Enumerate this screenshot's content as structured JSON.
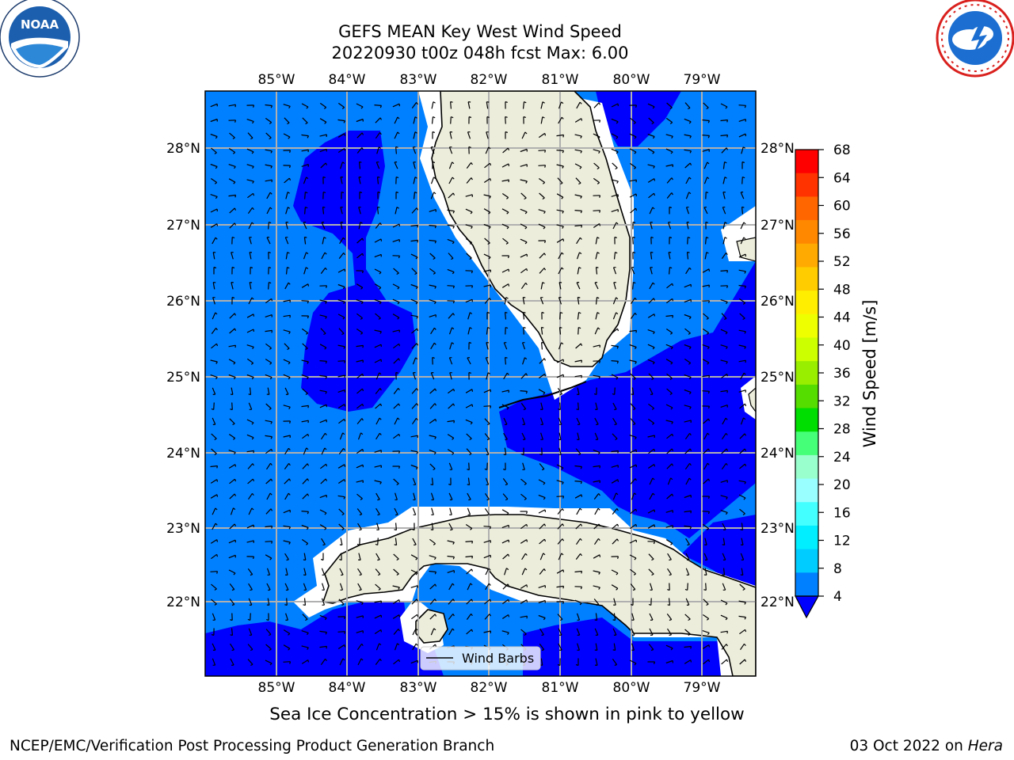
{
  "title": {
    "line1": "GEFS MEAN Key West Wind Speed",
    "line2": "20220930 t00z 048h fcst   Max: 6.00"
  },
  "logos": {
    "left": {
      "icon": "noaa-logo",
      "text": "NOAA"
    },
    "right": {
      "icon": "nws-logo"
    }
  },
  "map": {
    "lon_labels": [
      "85°W",
      "84°W",
      "83°W",
      "82°W",
      "81°W",
      "80°W",
      "79°W"
    ],
    "lat_labels": [
      "28°N",
      "27°N",
      "26°N",
      "25°N",
      "24°N",
      "23°N",
      "22°N"
    ],
    "legend_label": "Wind Barbs",
    "colors": {
      "band_4_8": "#0080ff",
      "band_below_4": "#0000ff",
      "land": "#ededdc",
      "gridline": "#b0b0b0"
    }
  },
  "colorbar": {
    "label": "Wind Speed [m/s]",
    "ticks": [
      "68",
      "64",
      "60",
      "56",
      "52",
      "48",
      "44",
      "40",
      "36",
      "32",
      "28",
      "24",
      "20",
      "16",
      "12",
      "8",
      "4"
    ],
    "colors": [
      "#ff0000",
      "#ff3300",
      "#ff6600",
      "#ff8800",
      "#ffaa00",
      "#ffcc00",
      "#ffee00",
      "#eeff00",
      "#ccff00",
      "#99ee00",
      "#55dd00",
      "#00dd00",
      "#44ff77",
      "#99ffcc",
      "#99ffff",
      "#44ffff",
      "#00eeff",
      "#00ccff",
      "#0080ff"
    ],
    "extend_color": "#0000ff"
  },
  "footer": {
    "note": "Sea Ice Concentration > 15% is shown in pink to yellow",
    "credit": "NCEP/EMC/Verification Post Processing Product Generation Branch",
    "date": "03 Oct 2022 on ",
    "host": "Hera"
  }
}
